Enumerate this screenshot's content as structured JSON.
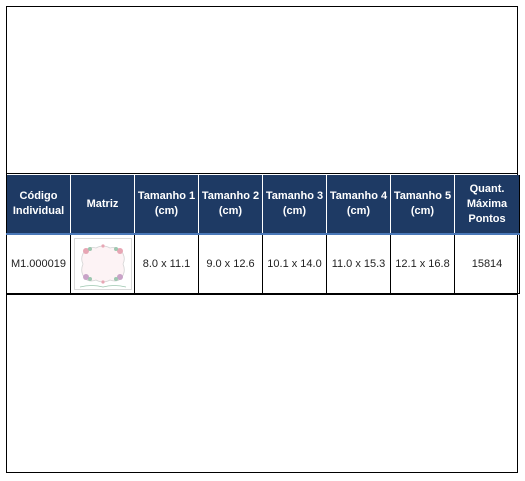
{
  "table": {
    "headers": [
      [
        "Código",
        "Individual"
      ],
      [
        "Matriz"
      ],
      [
        "Tamanho 1",
        "(cm)"
      ],
      [
        "Tamanho 2",
        "(cm)"
      ],
      [
        "Tamanho 3",
        "(cm)"
      ],
      [
        "Tamanho 4",
        "(cm)"
      ],
      [
        "Tamanho 5",
        "(cm)"
      ],
      [
        "Quant.",
        "Máxima",
        "Pontos"
      ]
    ],
    "row": {
      "codigo": "M1.000019",
      "tamanho_1": "8.0 x 11.1",
      "tamanho_2": "9.0 x 12.6",
      "tamanho_3": "10.1 x 14.0",
      "tamanho_4": "11.0 x 15.3",
      "tamanho_5": "12.1 x 16.8",
      "quant_maxima_pontos": "15814"
    }
  },
  "thumbnail": {
    "icon": "floral-frame-icon",
    "border_color": "#d9d9d9",
    "flower_colors": [
      "#e7a6b4",
      "#9ec7b0",
      "#c9a3c8"
    ]
  },
  "colors": {
    "header_bg": "#1e3a64",
    "header_text": "#ffffff",
    "header_underline": "#4a78b8"
  }
}
